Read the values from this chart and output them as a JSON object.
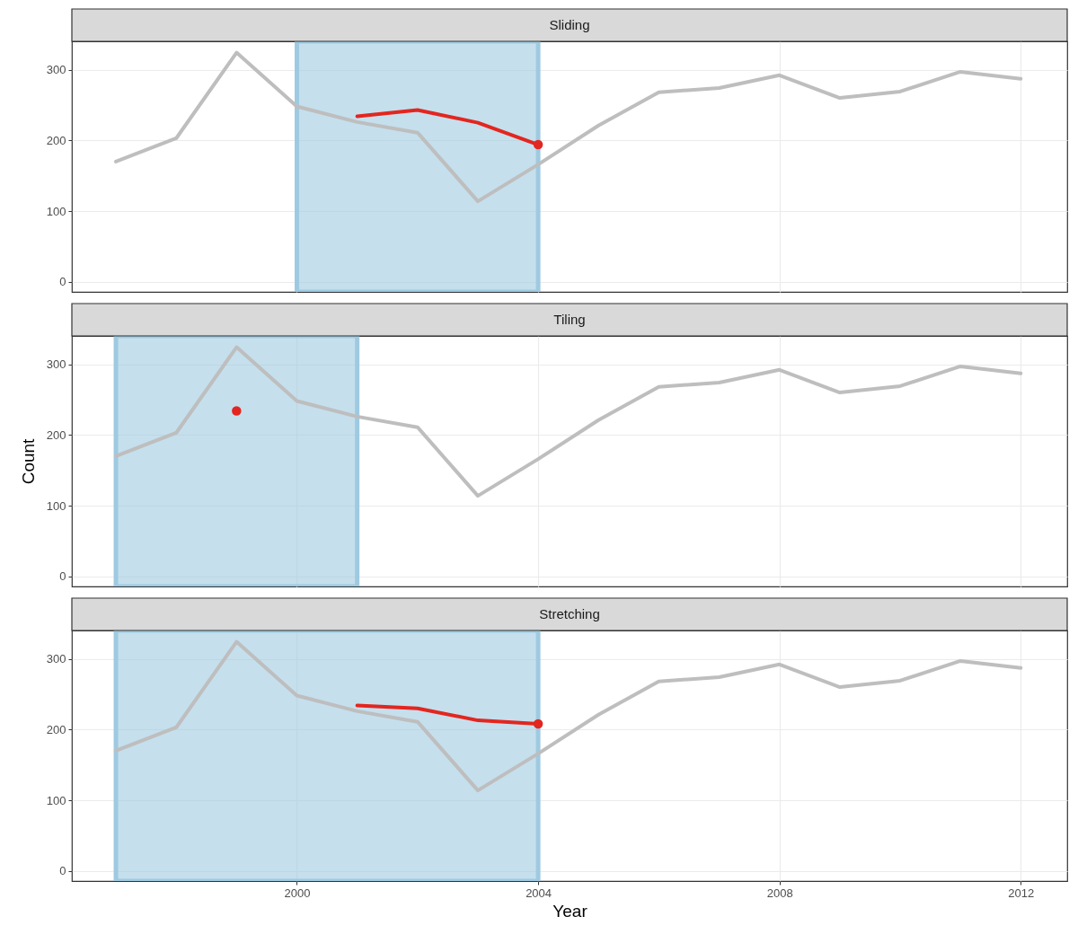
{
  "chart_data": [
    {
      "type": "line",
      "title": "Sliding",
      "x": [
        1997,
        1998,
        1999,
        2000,
        2001,
        2002,
        2003,
        2004,
        2005,
        2006,
        2007,
        2008,
        2009,
        2010,
        2011,
        2012
      ],
      "xlim": [
        1996.27,
        2012.77
      ],
      "xticks": [
        2000,
        2004,
        2008,
        2012
      ],
      "ylim": [
        -14,
        340
      ],
      "yticks": [
        0,
        100,
        200,
        300
      ],
      "grid": true,
      "tick_labels": "y",
      "series": [
        {
          "color": "#bebebe",
          "values": [
            170,
            203,
            324,
            248,
            226,
            211,
            114,
            166,
            221,
            268,
            274,
            292,
            260,
            269,
            297,
            287
          ]
        },
        {
          "color": "#e3261f",
          "x": [
            2001,
            2002,
            2003,
            2004
          ],
          "values": [
            234,
            243,
            225,
            194
          ]
        },
        {
          "type": "scatter",
          "color": "#e3261f",
          "x": [
            2004
          ],
          "values": [
            194
          ]
        }
      ],
      "bands": [
        {
          "axis": "x",
          "from": 2000,
          "to": 2004,
          "color": "#9ecae1"
        }
      ]
    },
    {
      "type": "line",
      "title": "Tiling",
      "ylabel": "Count",
      "x": [
        1997,
        1998,
        1999,
        2000,
        2001,
        2002,
        2003,
        2004,
        2005,
        2006,
        2007,
        2008,
        2009,
        2010,
        2011,
        2012
      ],
      "xlim": [
        1996.27,
        2012.77
      ],
      "xticks": [
        2000,
        2004,
        2008,
        2012
      ],
      "ylim": [
        -14,
        340
      ],
      "yticks": [
        0,
        100,
        200,
        300
      ],
      "grid": true,
      "tick_labels": "y",
      "series": [
        {
          "color": "#bebebe",
          "values": [
            170,
            203,
            324,
            248,
            226,
            211,
            114,
            166,
            221,
            268,
            274,
            292,
            260,
            269,
            297,
            287
          ]
        },
        {
          "type": "scatter",
          "color": "#e3261f",
          "x": [
            1999
          ],
          "values": [
            234
          ]
        }
      ],
      "bands": [
        {
          "axis": "x",
          "from": 1997,
          "to": 2001,
          "color": "#9ecae1"
        }
      ]
    },
    {
      "type": "line",
      "title": "Stretching",
      "xlabel": "Year",
      "x": [
        1997,
        1998,
        1999,
        2000,
        2001,
        2002,
        2003,
        2004,
        2005,
        2006,
        2007,
        2008,
        2009,
        2010,
        2011,
        2012
      ],
      "xlim": [
        1996.27,
        2012.77
      ],
      "xticks": [
        2000,
        2004,
        2008,
        2012
      ],
      "ylim": [
        -14,
        340
      ],
      "yticks": [
        0,
        100,
        200,
        300
      ],
      "grid": true,
      "series": [
        {
          "color": "#bebebe",
          "values": [
            170,
            203,
            324,
            248,
            226,
            211,
            114,
            166,
            221,
            268,
            274,
            292,
            260,
            269,
            297,
            287
          ]
        },
        {
          "color": "#e3261f",
          "x": [
            2001,
            2002,
            2003,
            2004
          ],
          "values": [
            234,
            230,
            213,
            208
          ]
        },
        {
          "type": "scatter",
          "color": "#e3261f",
          "x": [
            2004
          ],
          "values": [
            208
          ]
        }
      ],
      "bands": [
        {
          "axis": "x",
          "from": 1997,
          "to": 2004,
          "color": "#9ecae1"
        }
      ]
    }
  ]
}
